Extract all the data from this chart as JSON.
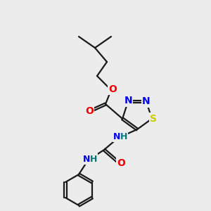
{
  "bg_color": "#ececec",
  "bond_color": "#1a1a1a",
  "atom_colors": {
    "N": "#0000ee",
    "O": "#ee0000",
    "S": "#cccc00",
    "H": "#007777"
  },
  "lw": 1.6,
  "doff": 0.08,
  "fs": 9,
  "figsize": [
    3.0,
    3.0
  ],
  "dpi": 100
}
